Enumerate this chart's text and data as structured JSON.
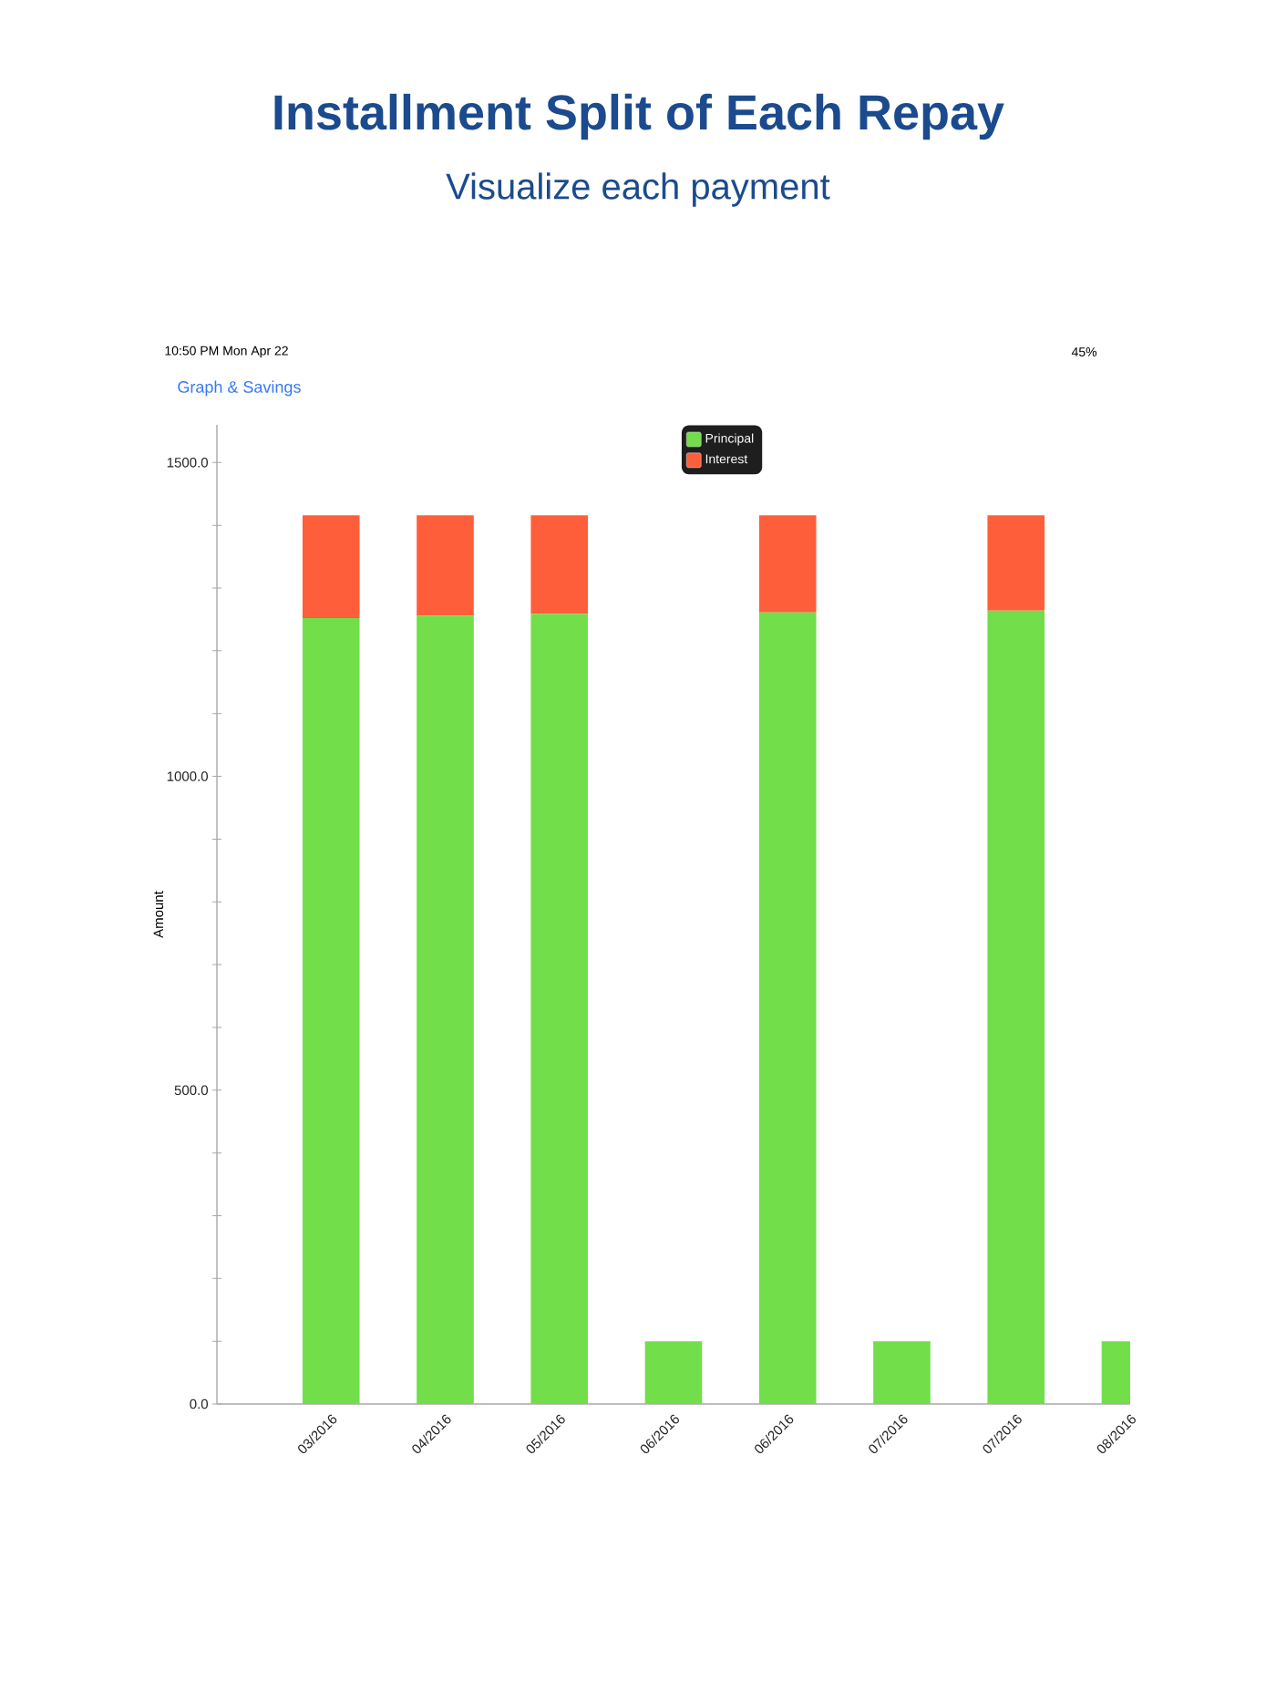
{
  "chart_data": {
    "type": "bar",
    "title": "Installment Split of Each Repay",
    "subtitle": "Visualize each payment",
    "ylabel": "Amount",
    "categories": [
      "03/2016",
      "04/2016",
      "05/2016",
      "06/2016",
      "06/2016",
      "07/2016",
      "07/2016",
      "08/2016"
    ],
    "series": [
      {
        "name": "Principal",
        "color": "#71de4a",
        "values": [
          1252,
          1256,
          1259,
          100,
          1261,
          100,
          1264,
          100
        ]
      },
      {
        "name": "Interest",
        "color": "#ff5e3a",
        "values": [
          164,
          160,
          157,
          null,
          155,
          null,
          152,
          null
        ]
      }
    ],
    "stacked": true,
    "ylim": [
      0,
      1560
    ],
    "yticks": [
      {
        "value": 0,
        "label": "0.0"
      },
      {
        "value": 100,
        "label": null
      },
      {
        "value": 200,
        "label": null
      },
      {
        "value": 300,
        "label": null
      },
      {
        "value": 400,
        "label": null
      },
      {
        "value": 500,
        "label": "500.0"
      },
      {
        "value": 600,
        "label": null
      },
      {
        "value": 700,
        "label": null
      },
      {
        "value": 800,
        "label": null
      },
      {
        "value": 900,
        "label": null
      },
      {
        "value": 1000,
        "label": "1000.0"
      },
      {
        "value": 1100,
        "label": null
      },
      {
        "value": 1200,
        "label": null
      },
      {
        "value": 1300,
        "label": null
      },
      {
        "value": 1400,
        "label": null
      },
      {
        "value": 1500,
        "label": "1500.0"
      }
    ],
    "legend": "top",
    "annotations": [
      "10:50 PM  Mon Apr 22",
      "45%",
      "Graph & Savings"
    ]
  }
}
